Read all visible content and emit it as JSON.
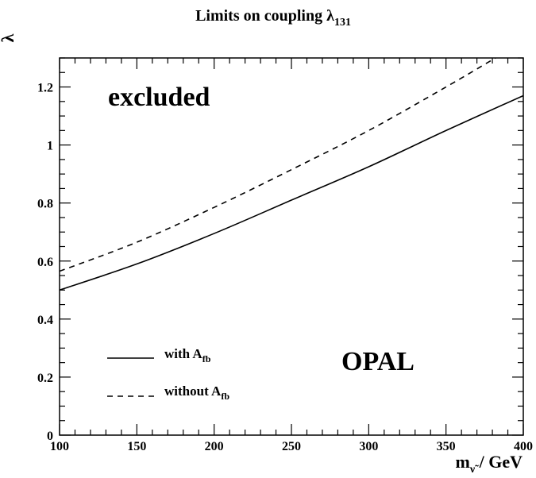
{
  "chart_data": {
    "type": "line",
    "title": {
      "main": "Limits on coupling ",
      "symbol": "λ",
      "sub": "131"
    },
    "xlabel": {
      "main": "m",
      "sub": "ν̃",
      "rest": " / GeV"
    },
    "ylabel": "λ",
    "xlim": [
      100,
      400
    ],
    "ylim": [
      0,
      1.3
    ],
    "x_ticks": [
      100,
      150,
      200,
      250,
      300,
      350,
      400
    ],
    "x_tick_labels": [
      "100",
      "150",
      "200",
      "250",
      "300",
      "350",
      "400"
    ],
    "y_ticks": [
      0,
      0.2,
      0.4,
      0.6,
      0.8,
      1.0,
      1.2
    ],
    "y_tick_labels": [
      "0",
      "0.2",
      "0.4",
      "0.6",
      "0.8",
      "1",
      "1.2"
    ],
    "grid": false,
    "legend_position": "bottom-left",
    "annotations": {
      "region": "excluded",
      "experiment": "OPAL"
    },
    "series": [
      {
        "name": {
          "main": "with A",
          "sub": "fb"
        },
        "line_style": "solid",
        "color": "#000000",
        "x": [
          100,
          150,
          200,
          250,
          300,
          350,
          400
        ],
        "y": [
          0.5,
          0.59,
          0.695,
          0.81,
          0.925,
          1.05,
          1.17
        ]
      },
      {
        "name": {
          "main": "without A",
          "sub": "fb"
        },
        "line_style": "dashed",
        "color": "#000000",
        "x": [
          100,
          150,
          200,
          250,
          300,
          350,
          382
        ],
        "y": [
          0.565,
          0.665,
          0.785,
          0.915,
          1.05,
          1.2,
          1.3
        ]
      }
    ]
  }
}
